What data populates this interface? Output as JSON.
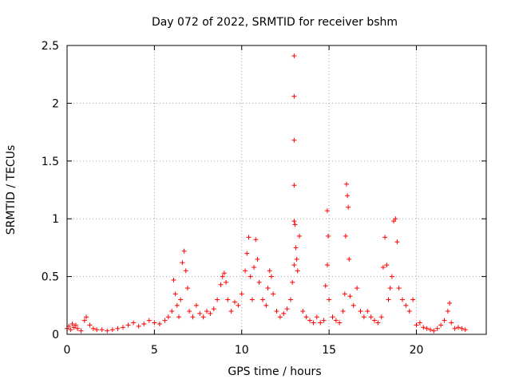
{
  "chart_data": {
    "type": "scatter",
    "title": "Day 072 of 2022, SRMTID for receiver bshm",
    "xlabel": "GPS time / hours",
    "ylabel": "SRMTID / TECUs",
    "xlim": [
      0,
      24
    ],
    "ylim": [
      0,
      2.5
    ],
    "x_ticks": [
      0,
      5,
      10,
      15,
      20
    ],
    "x_tick_labels": [
      "0",
      "5",
      "10",
      "15",
      "20"
    ],
    "y_ticks": [
      0,
      0.5,
      1,
      1.5,
      2,
      2.5
    ],
    "y_tick_labels": [
      "0",
      "0.5",
      "1",
      "1.5",
      "2",
      "2.5"
    ],
    "grid": true,
    "marker": "+",
    "colors": {
      "series": "#ff0000",
      "grid": "#a0a0a0",
      "axis": "#000000"
    },
    "series": [
      {
        "name": "SRMTID",
        "x": [
          0.0,
          0.1,
          0.2,
          0.3,
          0.4,
          0.5,
          0.6,
          0.8,
          1.0,
          1.1,
          1.3,
          1.5,
          1.7,
          2.0,
          2.3,
          2.6,
          2.9,
          3.2,
          3.5,
          3.8,
          4.1,
          4.4,
          4.7,
          5.0,
          5.3,
          5.6,
          5.8,
          6.0,
          6.1,
          6.2,
          6.3,
          6.4,
          6.5,
          6.6,
          6.7,
          6.8,
          6.9,
          7.0,
          7.2,
          7.4,
          7.6,
          7.8,
          8.0,
          8.2,
          8.4,
          8.6,
          8.8,
          8.9,
          9.0,
          9.1,
          9.2,
          9.4,
          9.6,
          9.8,
          10.0,
          10.2,
          10.3,
          10.4,
          10.5,
          10.6,
          10.7,
          10.8,
          10.9,
          11.0,
          11.2,
          11.4,
          11.5,
          11.6,
          11.7,
          11.8,
          12.0,
          12.2,
          12.4,
          12.6,
          12.8,
          12.9,
          13.0,
          13.0,
          13.0,
          13.0,
          13.0,
          13.0,
          13.05,
          13.1,
          13.15,
          13.2,
          13.3,
          13.5,
          13.7,
          13.9,
          14.1,
          14.3,
          14.5,
          14.7,
          14.8,
          14.9,
          14.9,
          14.95,
          15.0,
          15.2,
          15.4,
          15.6,
          15.8,
          15.9,
          15.95,
          16.0,
          16.05,
          16.1,
          16.15,
          16.2,
          16.4,
          16.6,
          16.8,
          17.0,
          17.2,
          17.4,
          17.6,
          17.8,
          18.0,
          18.1,
          18.2,
          18.3,
          18.4,
          18.5,
          18.6,
          18.7,
          18.8,
          18.9,
          19.0,
          19.2,
          19.4,
          19.6,
          19.8,
          20.0,
          20.2,
          20.4,
          20.6,
          20.8,
          21.0,
          21.2,
          21.4,
          21.6,
          21.8,
          21.9,
          22.0,
          22.2,
          22.4,
          22.6,
          22.8
        ],
        "y": [
          0.05,
          0.07,
          0.04,
          0.09,
          0.06,
          0.08,
          0.05,
          0.03,
          0.12,
          0.15,
          0.08,
          0.05,
          0.04,
          0.04,
          0.03,
          0.04,
          0.05,
          0.06,
          0.08,
          0.1,
          0.07,
          0.09,
          0.12,
          0.1,
          0.09,
          0.12,
          0.15,
          0.2,
          0.47,
          0.35,
          0.25,
          0.15,
          0.3,
          0.62,
          0.72,
          0.55,
          0.4,
          0.2,
          0.15,
          0.25,
          0.18,
          0.15,
          0.2,
          0.18,
          0.22,
          0.3,
          0.43,
          0.5,
          0.53,
          0.45,
          0.3,
          0.2,
          0.28,
          0.25,
          0.35,
          0.55,
          0.7,
          0.84,
          0.5,
          0.3,
          0.58,
          0.82,
          0.65,
          0.45,
          0.3,
          0.25,
          0.4,
          0.55,
          0.5,
          0.35,
          0.2,
          0.15,
          0.18,
          0.22,
          0.3,
          0.45,
          0.6,
          0.98,
          1.29,
          1.68,
          2.06,
          2.41,
          0.95,
          0.75,
          0.65,
          0.55,
          0.85,
          0.2,
          0.15,
          0.12,
          0.1,
          0.15,
          0.1,
          0.12,
          0.42,
          0.6,
          1.07,
          0.85,
          0.3,
          0.15,
          0.12,
          0.1,
          0.2,
          0.35,
          0.85,
          1.3,
          1.2,
          1.1,
          0.65,
          0.33,
          0.25,
          0.4,
          0.2,
          0.15,
          0.2,
          0.15,
          0.12,
          0.1,
          0.15,
          0.58,
          0.84,
          0.6,
          0.3,
          0.4,
          0.5,
          0.98,
          1.0,
          0.8,
          0.4,
          0.3,
          0.25,
          0.2,
          0.3,
          0.08,
          0.1,
          0.06,
          0.05,
          0.04,
          0.03,
          0.05,
          0.08,
          0.12,
          0.2,
          0.27,
          0.1,
          0.05,
          0.06,
          0.05,
          0.04
        ]
      }
    ]
  }
}
